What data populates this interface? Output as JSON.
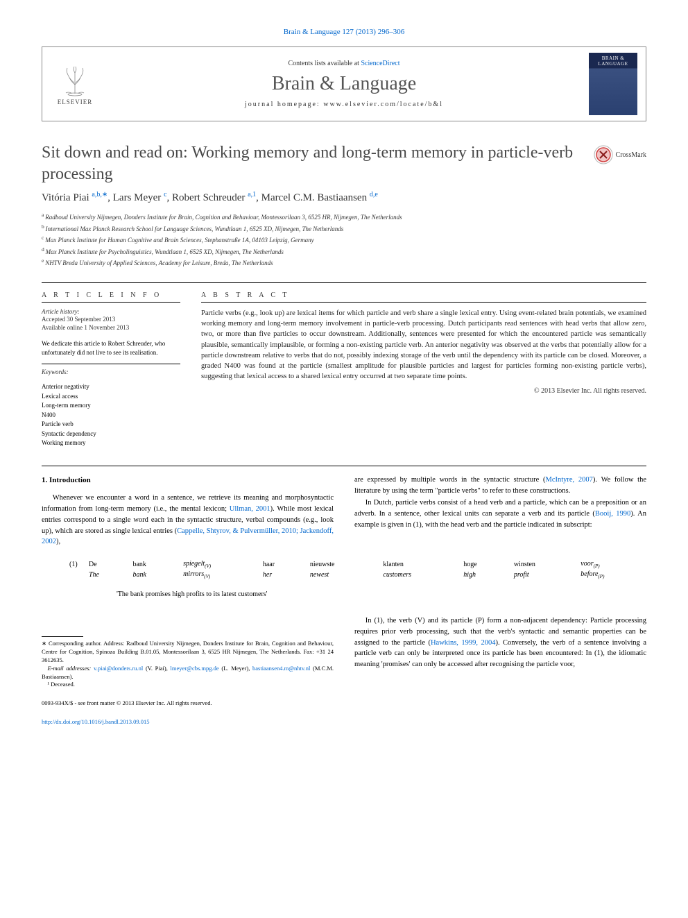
{
  "journal_ref": "Brain & Language 127 (2013) 296–306",
  "header": {
    "contents_prefix": "Contents lists available at ",
    "contents_link": "ScienceDirect",
    "journal_name": "Brain & Language",
    "homepage_prefix": "journal homepage: ",
    "homepage_url": "www.elsevier.com/locate/b&l",
    "publisher": "ELSEVIER",
    "cover_text": "BRAIN & LANGUAGE"
  },
  "crossmark_label": "CrossMark",
  "title": "Sit down and read on: Working memory and long-term memory in particle-verb processing",
  "authors_html": "Vitória Piai",
  "author_list": [
    {
      "name": "Vitória Piai",
      "sup": "a,b,∗"
    },
    {
      "name": "Lars Meyer",
      "sup": "c"
    },
    {
      "name": "Robert Schreuder",
      "sup": "a,1"
    },
    {
      "name": "Marcel C.M. Bastiaansen",
      "sup": "d,e"
    }
  ],
  "affiliations": [
    {
      "sup": "a",
      "text": "Radboud University Nijmegen, Donders Institute for Brain, Cognition and Behaviour, Montessorilaan 3, 6525 HR, Nijmegen, The Netherlands"
    },
    {
      "sup": "b",
      "text": "International Max Planck Research School for Language Sciences, Wundtlaan 1, 6525 XD, Nijmegen, The Netherlands"
    },
    {
      "sup": "c",
      "text": "Max Planck Institute for Human Cognitive and Brain Sciences, Stephanstraße 1A, 04103 Leipzig, Germany"
    },
    {
      "sup": "d",
      "text": "Max Planck Institute for Psycholinguistics, Wundtlaan 1, 6525 XD, Nijmegen, The Netherlands"
    },
    {
      "sup": "e",
      "text": "NHTV Breda University of Applied Sciences, Academy for Leisure, Breda, The Netherlands"
    }
  ],
  "info": {
    "heading": "A R T I C L E   I N F O",
    "history_head": "Article history:",
    "accepted": "Accepted 30 September 2013",
    "online": "Available online 1 November 2013",
    "dedication": "We dedicate this article to Robert Schreuder, who unfortunately did not live to see its realisation.",
    "keywords_head": "Keywords:",
    "keywords": [
      "Anterior negativity",
      "Lexical access",
      "Long-term memory",
      "N400",
      "Particle verb",
      "Syntactic dependency",
      "Working memory"
    ]
  },
  "abstract": {
    "heading": "A B S T R A C T",
    "text": "Particle verbs (e.g., look up) are lexical items for which particle and verb share a single lexical entry. Using event-related brain potentials, we examined working memory and long-term memory involvement in particle-verb processing. Dutch participants read sentences with head verbs that allow zero, two, or more than five particles to occur downstream. Additionally, sentences were presented for which the encountered particle was semantically plausible, semantically implausible, or forming a non-existing particle verb. An anterior negativity was observed at the verbs that potentially allow for a particle downstream relative to verbs that do not, possibly indexing storage of the verb until the dependency with its particle can be closed. Moreover, a graded N400 was found at the particle (smallest amplitude for plausible particles and largest for particles forming non-existing particle verbs), suggesting that lexical access to a shared lexical entry occurred at two separate time points.",
    "copyright": "© 2013 Elsevier Inc. All rights reserved."
  },
  "intro": {
    "heading": "1. Introduction",
    "p1_pre": "Whenever we encounter a word in a sentence, we retrieve its meaning and morphosyntactic information from long-term memory (i.e., the mental lexicon; ",
    "p1_link1": "Ullman, 2001",
    "p1_mid": "). While most lexical entries correspond to a single word each in the syntactic structure, verbal compounds (e.g., look up), which are stored as single lexical entries (",
    "p1_link2": "Cappelle, Shtyrov, & Pulvermüller, 2010; Jackendoff, 2002",
    "p1_post": "),",
    "p2_pre": "are expressed by multiple words in the syntactic structure (",
    "p2_link": "McIntyre, 2007",
    "p2_post": "). We follow the literature by using the term \"particle verbs\" to refer to these constructions.",
    "p3_pre": "In Dutch, particle verbs consist of a head verb and a particle, which can be a preposition or an adverb. In a sentence, other lexical units can separate a verb and its particle (",
    "p3_link": "Booij, 1990",
    "p3_post": "). An example is given in (1), with the head verb and the particle indicated in subscript:"
  },
  "example": {
    "num": "(1)",
    "row1": [
      "De",
      "bank",
      "spiegelt",
      "haar",
      "nieuwste",
      "klanten",
      "hoge",
      "winsten",
      "voor"
    ],
    "row1_sub": [
      "",
      "",
      "(V)",
      "",
      "",
      "",
      "",
      "",
      "(P)"
    ],
    "row2": [
      "The",
      "bank",
      "mirrors",
      "her",
      "newest",
      "customers",
      "high",
      "profit",
      "before"
    ],
    "row2_sub": [
      "",
      "",
      "(V)",
      "",
      "",
      "",
      "",
      "",
      "(P)"
    ],
    "gloss": "'The bank promises high profits to its latest customers'"
  },
  "body2": {
    "p1_pre": "In (1), the verb (V) and its particle (P) form a non-adjacent dependency: Particle processing requires prior verb processing, such that the verb's syntactic and semantic properties can be assigned to the particle (",
    "p1_link": "Hawkins, 1999, 2004",
    "p1_post": "). Conversely, the verb of a sentence involving a particle verb can only be interpreted once its particle has been encountered: In (1), the idiomatic meaning 'promises' can only be accessed after recognising the particle voor,"
  },
  "footnotes": {
    "corr": "∗ Corresponding author. Address: Radboud University Nijmegen, Donders Institute for Brain, Cognition and Behaviour, Centre for Cognition, Spinoza Building B.01.05, Montessorilaan 3, 6525 HR Nijmegen, The Netherlands. Fax: +31 24 3612635.",
    "email_label": "E-mail addresses: ",
    "emails": [
      {
        "addr": "v.piai@donders.ru.nl",
        "who": "(V. Piai)"
      },
      {
        "addr": "lmeyer@cbs.mpg.de",
        "who": "(L. Meyer)"
      },
      {
        "addr": "bastiaansen4.m@nhtv.nl",
        "who": "(M.C.M. Bastiaansen)"
      }
    ],
    "deceased": "¹ Deceased."
  },
  "bottom": {
    "issn": "0093-934X/$ - see front matter © 2013 Elsevier Inc. All rights reserved.",
    "doi": "http://dx.doi.org/10.1016/j.bandl.2013.09.015"
  },
  "colors": {
    "link": "#0066cc",
    "text": "#222222",
    "title": "#484848",
    "rule": "#000000"
  }
}
